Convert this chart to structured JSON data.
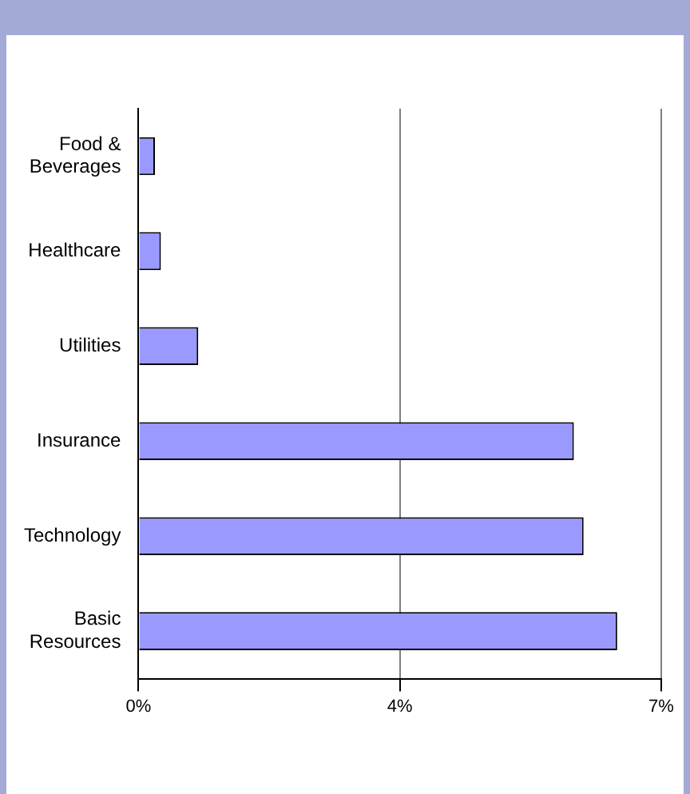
{
  "chart_data": {
    "type": "bar",
    "orientation": "horizontal",
    "categories": [
      "Food & Beverages",
      "Healthcare",
      "Utilities",
      "Insurance",
      "Technology",
      "Basic Resources"
    ],
    "values": [
      0.22,
      0.3,
      0.8,
      5.83,
      5.96,
      6.41
    ],
    "color": "#9999ff",
    "xlim": [
      0,
      7
    ],
    "xticks": [
      {
        "value": 0,
        "label": "0%"
      },
      {
        "value": 3.5,
        "label": "4%"
      },
      {
        "value": 7,
        "label": "7%"
      }
    ],
    "grid": "x",
    "legend": false
  }
}
